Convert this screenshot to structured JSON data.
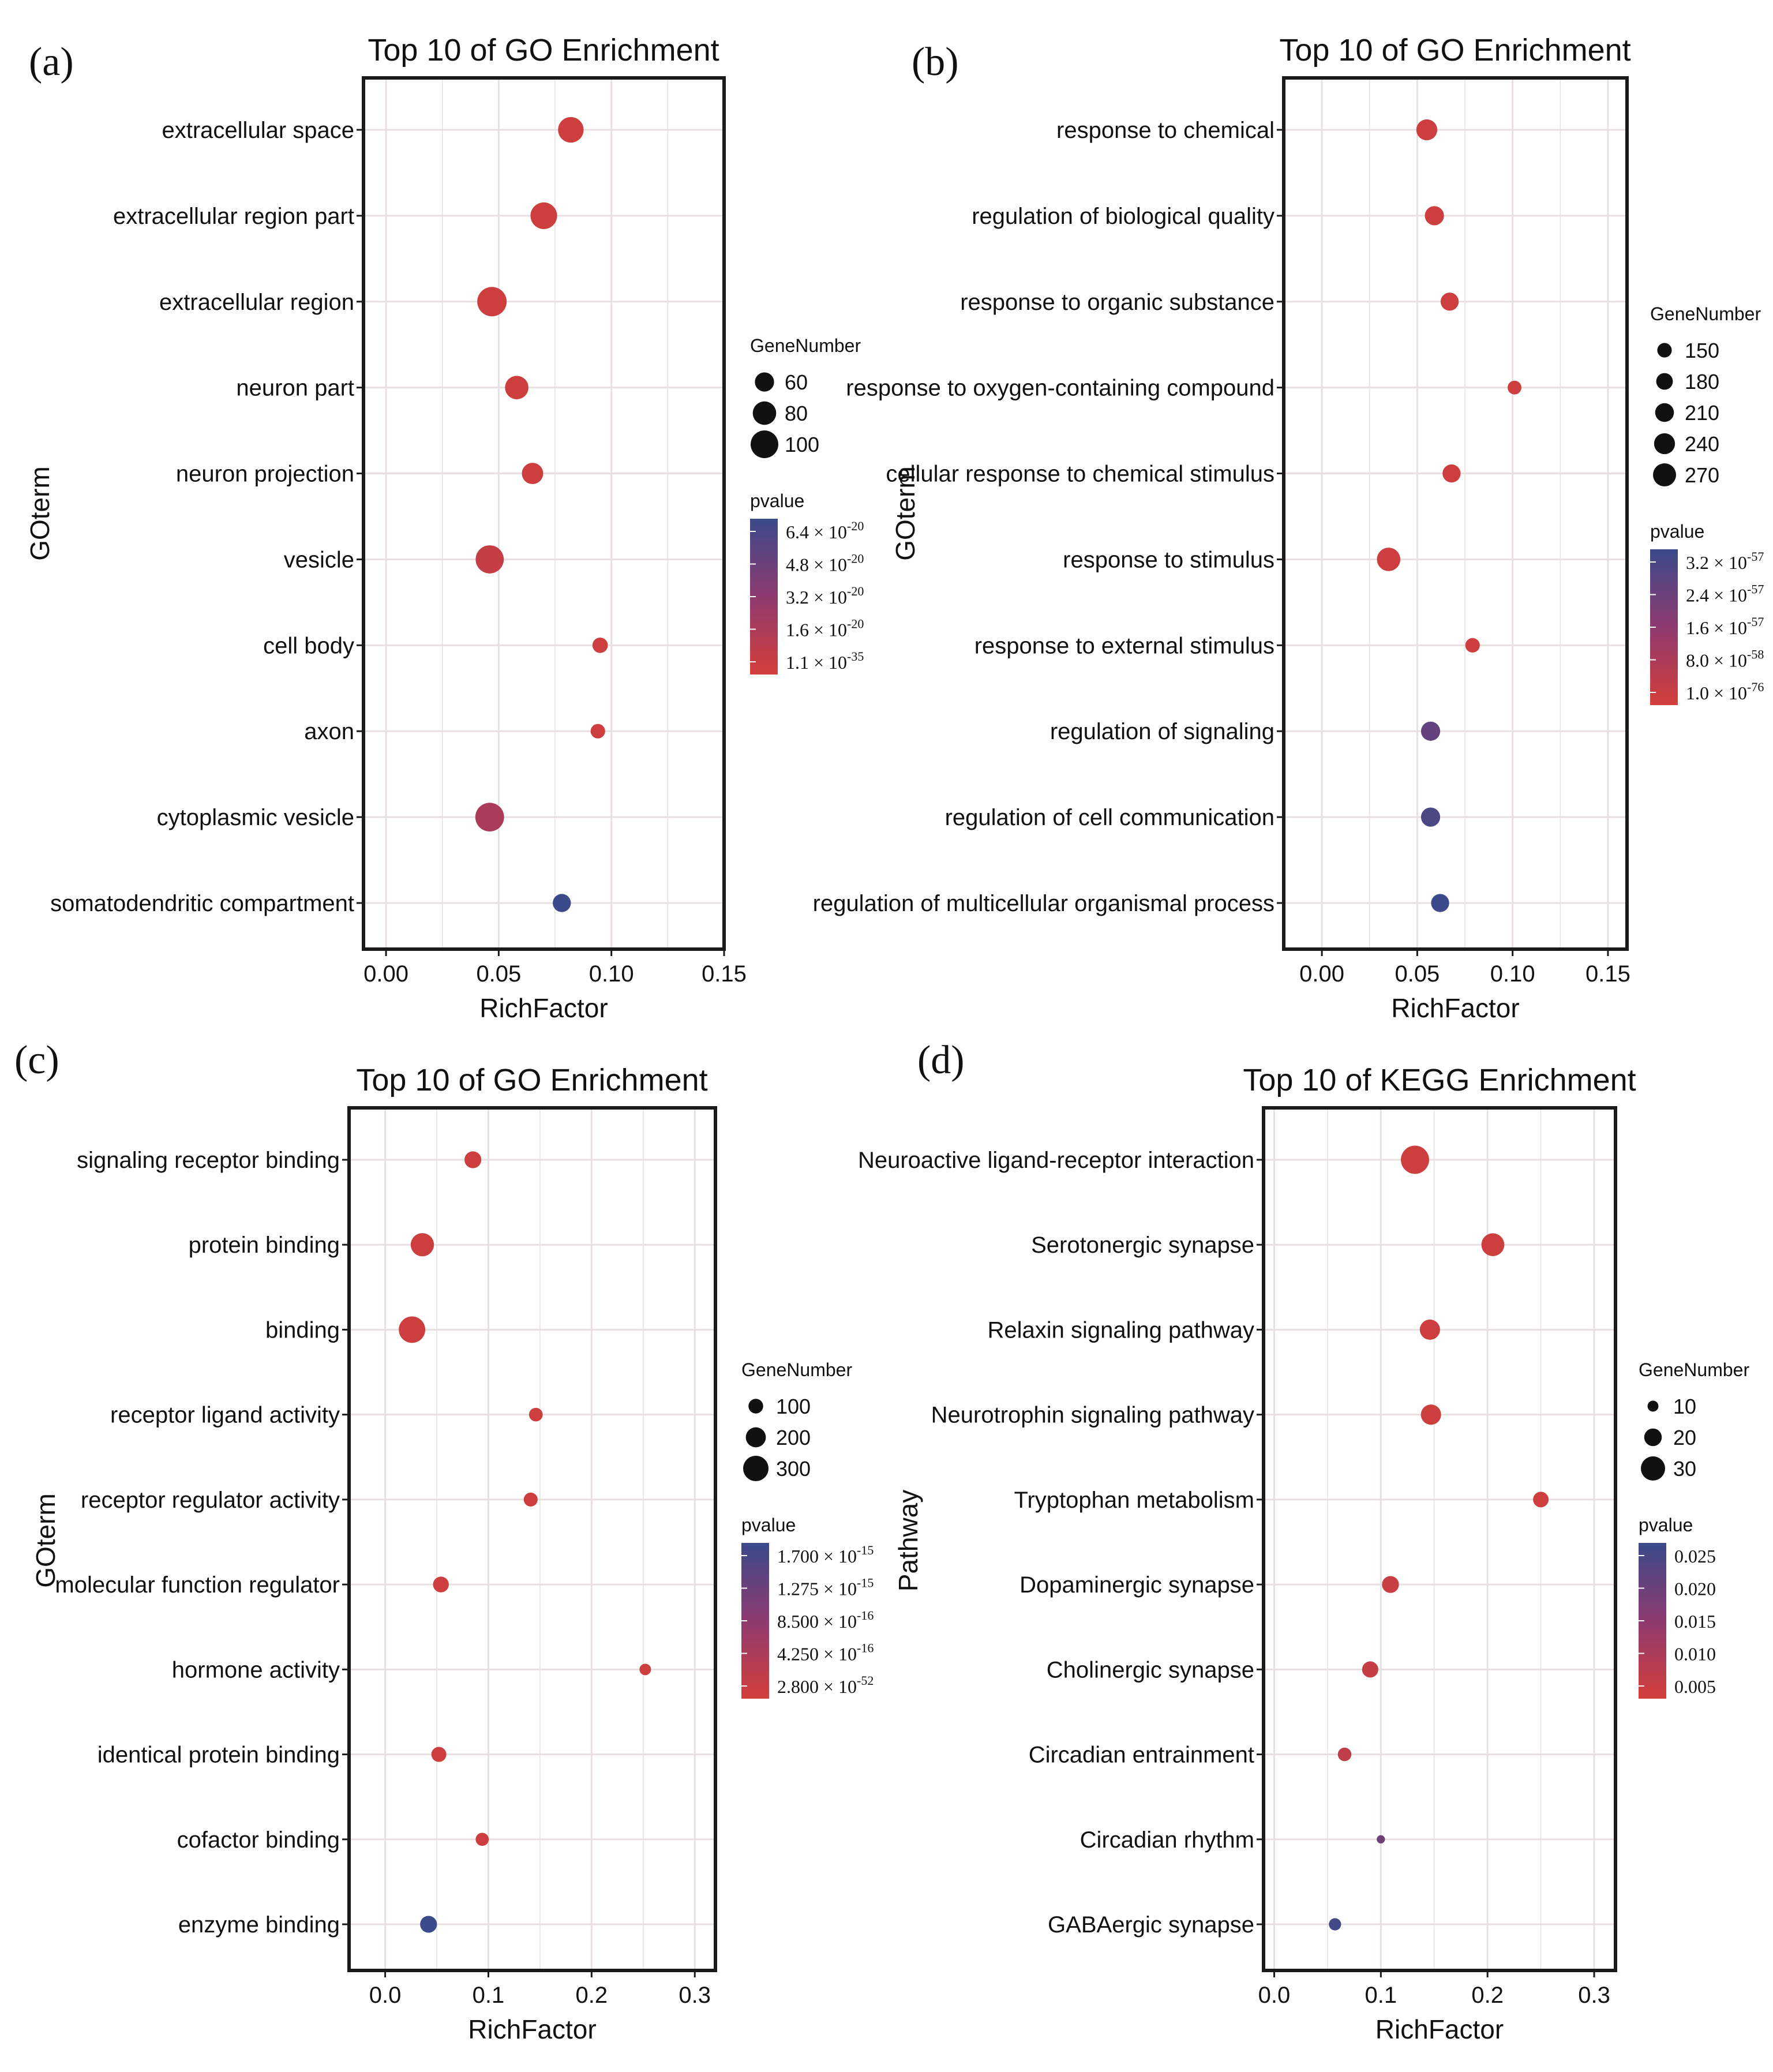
{
  "colors": {
    "low_p": "#d43f3a",
    "high_p": "#3b4a8a",
    "grid": "#e8e0e0",
    "frame": "#1a1a1a",
    "text": "#111111"
  },
  "chart_data": [
    {
      "panel": "(a)",
      "type": "scatter",
      "title": "Top 10 of GO Enrichment",
      "xlabel": "RichFactor",
      "ylabel": "GOterm",
      "xlim": [
        -0.01,
        0.15
      ],
      "xticks": [
        "0.00",
        "0.05",
        "0.10",
        "0.15"
      ],
      "xtick_values": [
        0,
        0.05,
        0.1,
        0.15
      ],
      "grid": true,
      "legend_position": "right",
      "size_legend": {
        "title": "GeneNumber",
        "labels": [
          "60",
          "80",
          "100"
        ],
        "values": [
          60,
          80,
          100
        ]
      },
      "color_legend": {
        "title": "pvalue",
        "labels": [
          {
            "m": "6.4 × 10",
            "e": "-20"
          },
          {
            "m": "4.8 × 10",
            "e": "-20"
          },
          {
            "m": "3.2 × 10",
            "e": "-20"
          },
          {
            "m": "1.6 × 10",
            "e": "-20"
          },
          {
            "m": "1.1 × 10",
            "e": "-35"
          }
        ]
      },
      "points": [
        {
          "term": "extracellular space",
          "x": 0.082,
          "gene_number": 90,
          "p_level": 0.05
        },
        {
          "term": "extracellular region part",
          "x": 0.07,
          "gene_number": 95,
          "p_level": 0.05
        },
        {
          "term": "extracellular region",
          "x": 0.047,
          "gene_number": 108,
          "p_level": 0.05
        },
        {
          "term": "neuron part",
          "x": 0.058,
          "gene_number": 80,
          "p_level": 0.05
        },
        {
          "term": "neuron projection",
          "x": 0.065,
          "gene_number": 70,
          "p_level": 0.05
        },
        {
          "term": "vesicle",
          "x": 0.046,
          "gene_number": 102,
          "p_level": 0.1
        },
        {
          "term": "cell body",
          "x": 0.095,
          "gene_number": 42,
          "p_level": 0.05
        },
        {
          "term": "axon",
          "x": 0.094,
          "gene_number": 38,
          "p_level": 0.05
        },
        {
          "term": "cytoplasmic vesicle",
          "x": 0.046,
          "gene_number": 105,
          "p_level": 0.3
        },
        {
          "term": "somatodendritic compartment",
          "x": 0.078,
          "gene_number": 55,
          "p_level": 1.0
        }
      ]
    },
    {
      "panel": "(b)",
      "type": "scatter",
      "title": "Top 10 of GO Enrichment",
      "xlabel": "RichFactor",
      "ylabel": "GOterm",
      "xlim": [
        -0.02,
        0.16
      ],
      "xticks": [
        "0.00",
        "0.05",
        "0.10",
        "0.15"
      ],
      "xtick_values": [
        0,
        0.05,
        0.1,
        0.15
      ],
      "grid": true,
      "legend_position": "right",
      "size_legend": {
        "title": "GeneNumber",
        "labels": [
          "150",
          "180",
          "210",
          "240",
          "270"
        ],
        "values": [
          150,
          180,
          210,
          240,
          270
        ]
      },
      "color_legend": {
        "title": "pvalue",
        "labels": [
          {
            "m": "3.2 × 10",
            "e": "-57"
          },
          {
            "m": "2.4 × 10",
            "e": "-57"
          },
          {
            "m": "1.6 × 10",
            "e": "-57"
          },
          {
            "m": "8.0 × 10",
            "e": "-58"
          },
          {
            "m": "1.0 × 10",
            "e": "-76"
          }
        ]
      },
      "points": [
        {
          "term": "response to chemical",
          "x": 0.055,
          "gene_number": 240,
          "p_level": 0.05
        },
        {
          "term": "regulation of biological quality",
          "x": 0.059,
          "gene_number": 215,
          "p_level": 0.05
        },
        {
          "term": "response to organic substance",
          "x": 0.067,
          "gene_number": 200,
          "p_level": 0.05
        },
        {
          "term": "response to oxygen-containing compound",
          "x": 0.101,
          "gene_number": 140,
          "p_level": 0.05
        },
        {
          "term": "cellular response to chemical stimulus",
          "x": 0.068,
          "gene_number": 200,
          "p_level": 0.05
        },
        {
          "term": "response to stimulus",
          "x": 0.035,
          "gene_number": 275,
          "p_level": 0.05
        },
        {
          "term": "response to external stimulus",
          "x": 0.079,
          "gene_number": 150,
          "p_level": 0.05
        },
        {
          "term": "regulation of signaling",
          "x": 0.057,
          "gene_number": 215,
          "p_level": 0.75
        },
        {
          "term": "regulation of cell communication",
          "x": 0.057,
          "gene_number": 215,
          "p_level": 0.9
        },
        {
          "term": "regulation of multicellular organismal process",
          "x": 0.062,
          "gene_number": 200,
          "p_level": 1.0
        }
      ]
    },
    {
      "panel": "(c)",
      "type": "scatter",
      "title": "Top 10 of GO Enrichment",
      "xlabel": "RichFactor",
      "ylabel": "GOterm",
      "xlim": [
        -0.035,
        0.32
      ],
      "xticks": [
        "0.0",
        "0.1",
        "0.2",
        "0.3"
      ],
      "xtick_values": [
        0,
        0.1,
        0.2,
        0.3
      ],
      "grid": true,
      "legend_position": "right",
      "size_legend": {
        "title": "GeneNumber",
        "labels": [
          "100",
          "200",
          "300"
        ],
        "values": [
          100,
          200,
          300
        ]
      },
      "color_legend": {
        "title": "pvalue",
        "labels": [
          {
            "m": "1.700 × 10",
            "e": "-15"
          },
          {
            "m": "1.275 × 10",
            "e": "-15"
          },
          {
            "m": "8.500 × 10",
            "e": "-16"
          },
          {
            "m": "4.250 × 10",
            "e": "-16"
          },
          {
            "m": "2.800 × 10",
            "e": "-52"
          }
        ]
      },
      "points": [
        {
          "term": "signaling receptor binding",
          "x": 0.085,
          "gene_number": 140,
          "p_level": 0.05
        },
        {
          "term": "protein binding",
          "x": 0.036,
          "gene_number": 260,
          "p_level": 0.05
        },
        {
          "term": "binding",
          "x": 0.026,
          "gene_number": 320,
          "p_level": 0.05
        },
        {
          "term": "receptor ligand activity",
          "x": 0.146,
          "gene_number": 80,
          "p_level": 0.05
        },
        {
          "term": "receptor regulator activity",
          "x": 0.141,
          "gene_number": 85,
          "p_level": 0.05
        },
        {
          "term": "molecular function regulator",
          "x": 0.054,
          "gene_number": 120,
          "p_level": 0.05
        },
        {
          "term": "hormone activity",
          "x": 0.252,
          "gene_number": 30,
          "p_level": 0.05
        },
        {
          "term": "identical protein binding",
          "x": 0.052,
          "gene_number": 105,
          "p_level": 0.05
        },
        {
          "term": "cofactor binding",
          "x": 0.094,
          "gene_number": 70,
          "p_level": 0.05
        },
        {
          "term": "enzyme binding",
          "x": 0.042,
          "gene_number": 140,
          "p_level": 1.0
        }
      ]
    },
    {
      "panel": "(d)",
      "type": "scatter",
      "title": "Top 10 of KEGG Enrichment",
      "xlabel": "RichFactor",
      "ylabel": "Pathway",
      "xlim": [
        -0.01,
        0.32
      ],
      "xticks": [
        "0.0",
        "0.1",
        "0.2",
        "0.3"
      ],
      "xtick_values": [
        0,
        0.1,
        0.2,
        0.3
      ],
      "grid": true,
      "legend_position": "right",
      "size_legend": {
        "title": "GeneNumber",
        "labels": [
          "10",
          "20",
          "30"
        ],
        "values": [
          10,
          20,
          30
        ]
      },
      "color_legend": {
        "title": "pvalue",
        "labels": [
          {
            "m": "0.025",
            "e": ""
          },
          {
            "m": "0.020",
            "e": ""
          },
          {
            "m": "0.015",
            "e": ""
          },
          {
            "m": "0.010",
            "e": ""
          },
          {
            "m": "0.005",
            "e": ""
          }
        ]
      },
      "points": [
        {
          "term": "Neuroactive ligand-receptor interaction",
          "x": 0.132,
          "gene_number": 36,
          "p_level": 0.05
        },
        {
          "term": "Serotonergic synapse",
          "x": 0.205,
          "gene_number": 28,
          "p_level": 0.05
        },
        {
          "term": "Relaxin signaling pathway",
          "x": 0.146,
          "gene_number": 24,
          "p_level": 0.05
        },
        {
          "term": "Neurotrophin signaling pathway",
          "x": 0.147,
          "gene_number": 24,
          "p_level": 0.05
        },
        {
          "term": "Tryptophan metabolism",
          "x": 0.25,
          "gene_number": 17,
          "p_level": 0.05
        },
        {
          "term": "Dopaminergic synapse",
          "x": 0.109,
          "gene_number": 19,
          "p_level": 0.08
        },
        {
          "term": "Cholinergic synapse",
          "x": 0.09,
          "gene_number": 18,
          "p_level": 0.1
        },
        {
          "term": "Circadian entrainment",
          "x": 0.066,
          "gene_number": 14,
          "p_level": 0.15
        },
        {
          "term": "Circadian rhythm",
          "x": 0.1,
          "gene_number": 6,
          "p_level": 0.7
        },
        {
          "term": "GABAergic synapse",
          "x": 0.057,
          "gene_number": 12,
          "p_level": 0.95
        }
      ]
    }
  ]
}
